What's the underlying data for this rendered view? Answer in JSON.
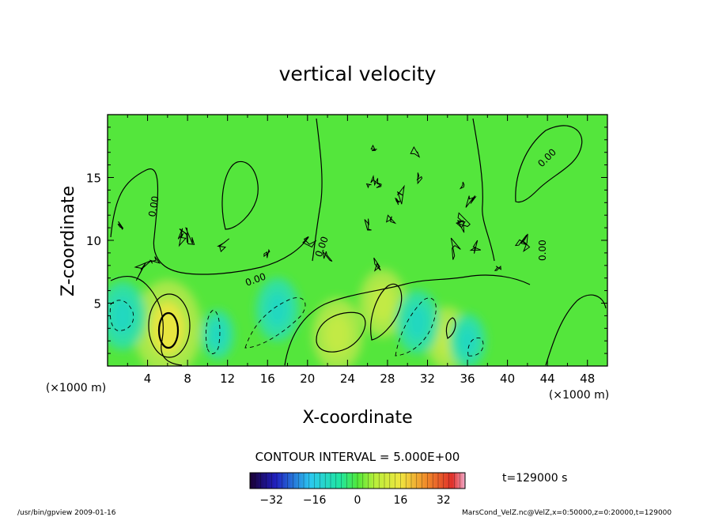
{
  "chart_data": {
    "type": "heatmap",
    "title": "vertical velocity",
    "xlabel": "X-coordinate",
    "ylabel": "Z-coordinate",
    "x_unit": "(×1000 m)",
    "y_unit": "(×1000 m)",
    "xlim": [
      0,
      50
    ],
    "ylim": [
      0,
      20
    ],
    "x_ticks": [
      "4",
      "8",
      "12",
      "16",
      "20",
      "24",
      "28",
      "32",
      "36",
      "40",
      "44",
      "48"
    ],
    "y_ticks": [
      "5",
      "10",
      "15"
    ],
    "contour_interval_text": "CONTOUR INTERVAL = 5.000E+00",
    "contour_label": "0.00",
    "time_text": "t=129000 s",
    "colorbar": {
      "range": [
        -40,
        40
      ],
      "ticks": [
        "−32",
        "−16",
        "0",
        "16",
        "32"
      ],
      "colormap": "rainbow"
    },
    "footer_left": "/usr/bin/gpview  2009-01-16",
    "footer_right": "MarsCond_VelZ.nc@VelZ,x=0:50000,z=0:20000,t=129000",
    "features": [
      {
        "kind": "updraft",
        "x": 6,
        "z": 3,
        "value": 13
      },
      {
        "kind": "updraft",
        "x": 23,
        "z": 2.5,
        "value": 8
      },
      {
        "kind": "updraft",
        "x": 27.5,
        "z": 5,
        "value": 7
      },
      {
        "kind": "updraft",
        "x": 34,
        "z": 2.2,
        "value": 6
      },
      {
        "kind": "downdraft",
        "x": 1.5,
        "z": 4,
        "value": -7
      },
      {
        "kind": "downdraft",
        "x": 17,
        "z": 4.5,
        "value": -6
      },
      {
        "kind": "downdraft",
        "x": 31,
        "z": 3.5,
        "value": -6
      },
      {
        "kind": "downdraft",
        "x": 11,
        "z": 2.5,
        "value": -3
      },
      {
        "kind": "downdraft",
        "x": 36,
        "z": 2,
        "value": -4
      }
    ]
  }
}
